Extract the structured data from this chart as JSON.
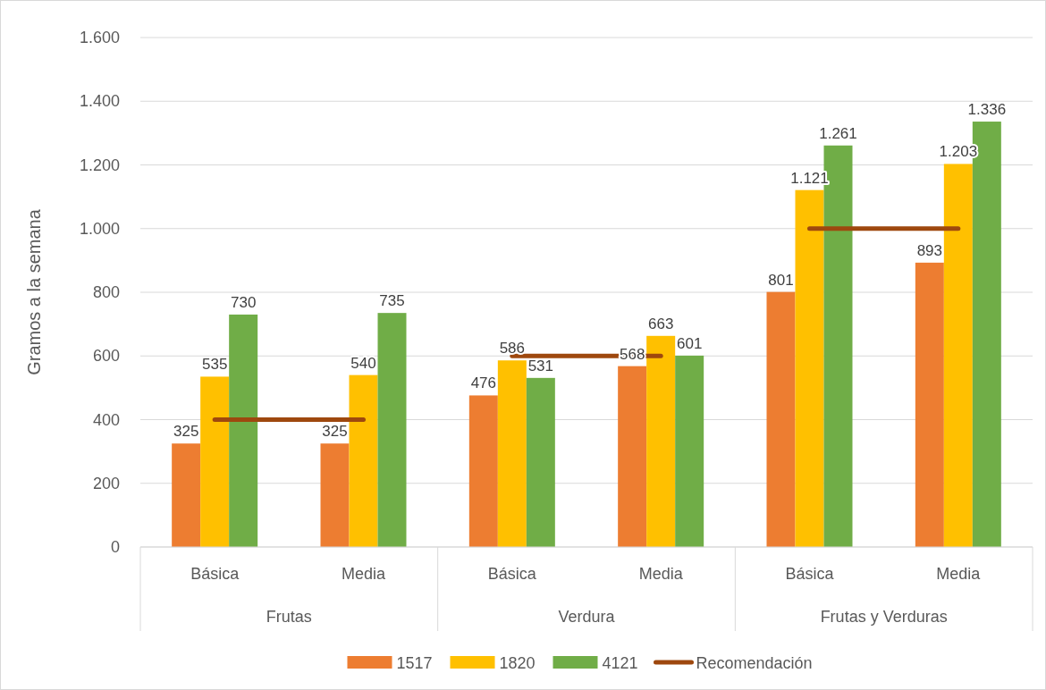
{
  "chart_data": {
    "type": "bar",
    "ylabel": "Gramos a la semana",
    "categories": [
      "Básica",
      "Media",
      "Básica",
      "Media",
      "Básica",
      "Media"
    ],
    "annotations": [
      "Frutas",
      "Verdura",
      "Frutas y Verduras"
    ],
    "series": [
      {
        "name": "1517",
        "color": "#ed7d31",
        "values": [
          325,
          325,
          476,
          568,
          801,
          893
        ],
        "value_labels": [
          "325",
          "325",
          "476",
          "568",
          "801",
          "893"
        ]
      },
      {
        "name": "1820",
        "color": "#ffc000",
        "values": [
          535,
          540,
          586,
          663,
          1121,
          1203
        ],
        "value_labels": [
          "535",
          "540",
          "586",
          "663",
          "1.121",
          "1.203"
        ]
      },
      {
        "name": "4121",
        "color": "#70ad47",
        "values": [
          730,
          735,
          531,
          601,
          1261,
          1336
        ],
        "value_labels": [
          "730",
          "735",
          "531",
          "601",
          "1.261",
          "1.336"
        ]
      },
      {
        "name": "Recomendación",
        "type": "line",
        "color": "#9e480e",
        "values": [
          400,
          400,
          null,
          null,
          null,
          null
        ]
      },
      {
        "type": "line",
        "color": "#9e480e",
        "values": [
          null,
          null,
          600,
          600,
          null,
          null
        ]
      },
      {
        "type": "line",
        "color": "#9e480e",
        "values": [
          null,
          null,
          null,
          null,
          1000,
          1000
        ]
      }
    ],
    "ylim": [
      0,
      1600
    ],
    "yticks": [
      0,
      200,
      400,
      600,
      800,
      {
        "value": 1000,
        "label": "1.000"
      },
      {
        "value": 1200,
        "label": "1.200"
      },
      {
        "value": 1400,
        "label": "1.400"
      },
      {
        "value": 1600,
        "label": "1.600"
      }
    ],
    "grid": "y",
    "legend": "bottom"
  }
}
